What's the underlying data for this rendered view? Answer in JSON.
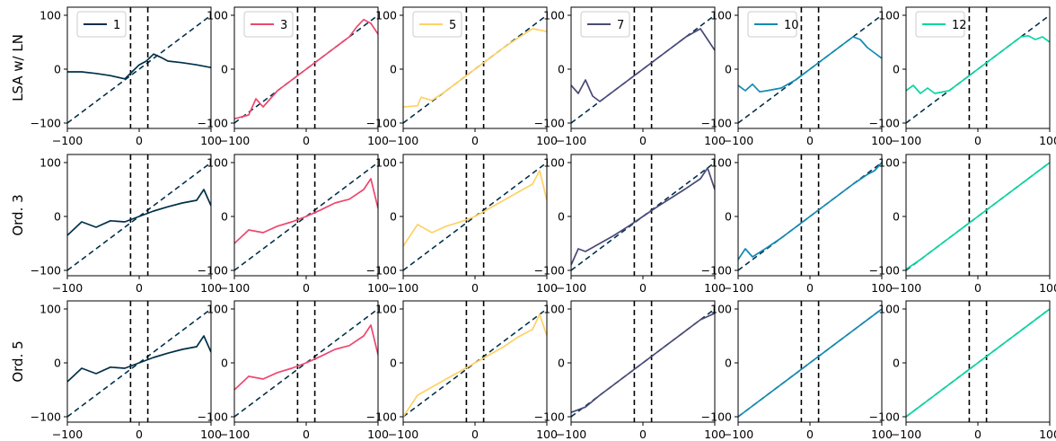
{
  "chart_data": {
    "type": "line",
    "x_range": [
      -100,
      100
    ],
    "ylim": [
      -110,
      115
    ],
    "x_ticks": [
      -100,
      0,
      100
    ],
    "y_ticks": [
      -100,
      0,
      100
    ],
    "grid": false,
    "legend_placement": "upper-left",
    "columns": [
      {
        "series_name": "1",
        "color": "#003049"
      },
      {
        "series_name": "3",
        "color": "#ef476f"
      },
      {
        "series_name": "5",
        "color": "#ffd166"
      },
      {
        "series_name": "7",
        "color": "#4a4a78"
      },
      {
        "series_name": "10",
        "color": "#118ab2"
      },
      {
        "series_name": "12",
        "color": "#06d6a0"
      }
    ],
    "rows": [
      {
        "label": "LSA w/ LN",
        "series": [
          {
            "name": "1",
            "x": [
              -100,
              -80,
              -60,
              -40,
              -20,
              -10,
              0,
              10,
              20,
              30,
              40,
              60,
              80,
              100
            ],
            "y": [
              -5,
              -5,
              -8,
              -12,
              -18,
              -5,
              8,
              15,
              28,
              22,
              15,
              12,
              8,
              3
            ]
          },
          {
            "name": "3",
            "x": [
              -100,
              -80,
              -70,
              -60,
              -40,
              -20,
              0,
              20,
              40,
              60,
              70,
              80,
              90,
              100
            ],
            "y": [
              -92,
              -85,
              -55,
              -70,
              -40,
              -20,
              0,
              20,
              40,
              60,
              78,
              92,
              85,
              65
            ]
          },
          {
            "name": "5",
            "x": [
              -100,
              -80,
              -75,
              -60,
              -40,
              -20,
              0,
              20,
              40,
              60,
              80,
              100
            ],
            "y": [
              -70,
              -68,
              -52,
              -58,
              -40,
              -20,
              0,
              20,
              40,
              58,
              75,
              70
            ]
          },
          {
            "name": "7",
            "x": [
              -100,
              -90,
              -80,
              -70,
              -60,
              -40,
              -20,
              0,
              20,
              40,
              60,
              80,
              90,
              100
            ],
            "y": [
              -30,
              -45,
              -20,
              -50,
              -60,
              -40,
              -20,
              0,
              20,
              40,
              60,
              75,
              55,
              35
            ]
          },
          {
            "name": "10",
            "x": [
              -100,
              -90,
              -80,
              -70,
              -60,
              -40,
              -20,
              0,
              20,
              40,
              60,
              70,
              80,
              90,
              100
            ],
            "y": [
              -30,
              -40,
              -28,
              -42,
              -40,
              -35,
              -20,
              0,
              20,
              40,
              60,
              55,
              40,
              30,
              20
            ]
          },
          {
            "name": "12",
            "x": [
              -100,
              -90,
              -80,
              -70,
              -60,
              -40,
              -20,
              0,
              20,
              40,
              60,
              70,
              80,
              90,
              100
            ],
            "y": [
              -40,
              -30,
              -45,
              -35,
              -45,
              -40,
              -20,
              0,
              20,
              40,
              60,
              62,
              55,
              60,
              50
            ]
          }
        ]
      },
      {
        "label": "Ord. 3",
        "series": [
          {
            "name": "1",
            "x": [
              -100,
              -80,
              -60,
              -40,
              -20,
              0,
              20,
              40,
              60,
              80,
              90,
              100
            ],
            "y": [
              -35,
              -10,
              -20,
              -8,
              -10,
              0,
              10,
              18,
              25,
              30,
              50,
              20
            ]
          },
          {
            "name": "3",
            "x": [
              -100,
              -80,
              -60,
              -40,
              -20,
              0,
              20,
              40,
              60,
              80,
              90,
              100
            ],
            "y": [
              -50,
              -25,
              -30,
              -18,
              -10,
              0,
              12,
              25,
              32,
              50,
              70,
              15
            ]
          },
          {
            "name": "5",
            "x": [
              -100,
              -80,
              -60,
              -40,
              -20,
              0,
              20,
              40,
              60,
              80,
              90,
              100
            ],
            "y": [
              -55,
              -15,
              -30,
              -18,
              -10,
              0,
              15,
              30,
              45,
              60,
              85,
              30
            ]
          },
          {
            "name": "7",
            "x": [
              -100,
              -90,
              -80,
              -60,
              -40,
              -20,
              0,
              20,
              40,
              60,
              80,
              90,
              100
            ],
            "y": [
              -90,
              -60,
              -65,
              -50,
              -35,
              -18,
              0,
              18,
              35,
              52,
              70,
              90,
              50
            ]
          },
          {
            "name": "10",
            "x": [
              -100,
              -90,
              -80,
              -60,
              -40,
              -20,
              0,
              20,
              40,
              60,
              80,
              90,
              100
            ],
            "y": [
              -80,
              -60,
              -75,
              -58,
              -40,
              -20,
              0,
              20,
              40,
              60,
              78,
              85,
              100
            ]
          },
          {
            "name": "12",
            "x": [
              -100,
              -80,
              -60,
              -40,
              -20,
              0,
              20,
              40,
              60,
              80,
              100
            ],
            "y": [
              -98,
              -80,
              -60,
              -40,
              -20,
              0,
              20,
              40,
              60,
              80,
              100
            ]
          }
        ]
      },
      {
        "label": "Ord. 5",
        "series": [
          {
            "name": "1",
            "x": [
              -100,
              -80,
              -60,
              -40,
              -20,
              0,
              20,
              40,
              60,
              80,
              90,
              100
            ],
            "y": [
              -35,
              -10,
              -20,
              -8,
              -10,
              0,
              10,
              18,
              25,
              30,
              50,
              20
            ]
          },
          {
            "name": "3",
            "x": [
              -100,
              -80,
              -60,
              -40,
              -20,
              0,
              20,
              40,
              60,
              80,
              90,
              100
            ],
            "y": [
              -50,
              -25,
              -30,
              -18,
              -10,
              0,
              12,
              25,
              32,
              50,
              70,
              15
            ]
          },
          {
            "name": "5",
            "x": [
              -100,
              -80,
              -60,
              -40,
              -20,
              0,
              20,
              40,
              60,
              80,
              90,
              100
            ],
            "y": [
              -100,
              -60,
              -45,
              -30,
              -15,
              0,
              15,
              30,
              48,
              62,
              90,
              50
            ]
          },
          {
            "name": "7",
            "x": [
              -100,
              -80,
              -60,
              -40,
              -20,
              0,
              20,
              40,
              60,
              80,
              100
            ],
            "y": [
              -92,
              -82,
              -60,
              -40,
              -20,
              0,
              20,
              40,
              60,
              80,
              92
            ]
          },
          {
            "name": "10",
            "x": [
              -100,
              -50,
              0,
              50,
              100
            ],
            "y": [
              -100,
              -50,
              0,
              50,
              100
            ]
          },
          {
            "name": "12",
            "x": [
              -100,
              -50,
              0,
              50,
              100
            ],
            "y": [
              -100,
              -50,
              0,
              50,
              100
            ]
          }
        ]
      }
    ],
    "reference_diagonal": {
      "x": [
        -100,
        100
      ],
      "y": [
        -100,
        100
      ],
      "color": "#003049",
      "style": "dashed"
    },
    "reference_verticals": {
      "x": [
        -12,
        12
      ],
      "color": "#000000",
      "style": "dashed"
    }
  }
}
